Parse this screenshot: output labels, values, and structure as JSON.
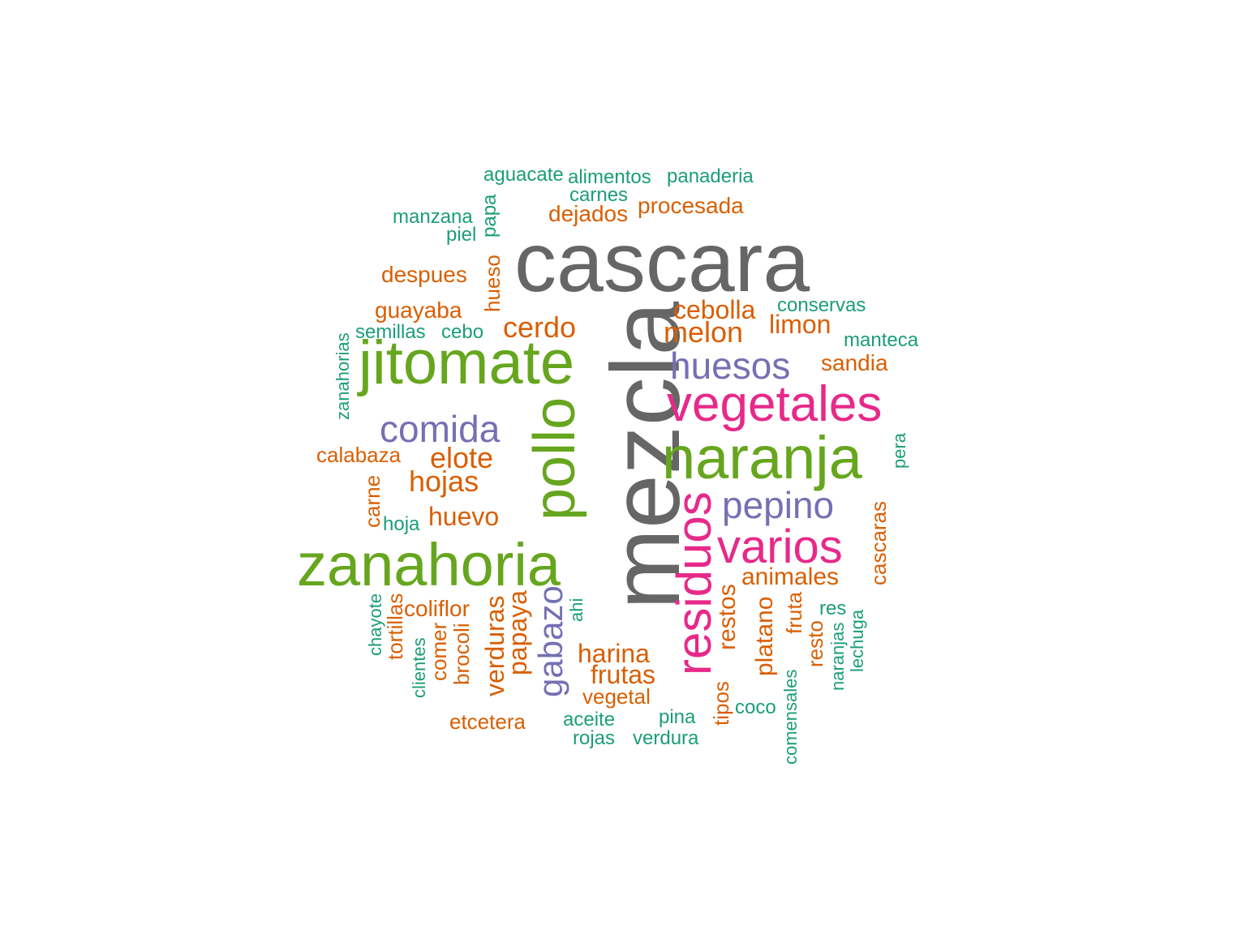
{
  "colors": {
    "gray": "#666666",
    "green": "#66a61e",
    "magenta": "#e7298a",
    "purple": "#7570b3",
    "orange": "#d95f02",
    "teal": "#1b9e77"
  },
  "words": [
    {
      "text": "cascara",
      "color": "gray"
    },
    {
      "text": "mezcla",
      "color": "gray"
    },
    {
      "text": "jitomate",
      "color": "green"
    },
    {
      "text": "zanahoria",
      "color": "green"
    },
    {
      "text": "naranja",
      "color": "green"
    },
    {
      "text": "pollo",
      "color": "green"
    },
    {
      "text": "vegetales",
      "color": "magenta"
    },
    {
      "text": "residuos",
      "color": "magenta"
    },
    {
      "text": "varios",
      "color": "magenta"
    },
    {
      "text": "comida",
      "color": "purple"
    },
    {
      "text": "huesos",
      "color": "purple"
    },
    {
      "text": "pepino",
      "color": "purple"
    },
    {
      "text": "gabazo",
      "color": "purple"
    },
    {
      "text": "cerdo",
      "color": "orange"
    },
    {
      "text": "melon",
      "color": "orange"
    },
    {
      "text": "cebolla",
      "color": "orange"
    },
    {
      "text": "elote",
      "color": "orange"
    },
    {
      "text": "hojas",
      "color": "orange"
    },
    {
      "text": "limon",
      "color": "orange"
    },
    {
      "text": "huevo",
      "color": "orange"
    },
    {
      "text": "harina",
      "color": "orange"
    },
    {
      "text": "frutas",
      "color": "orange"
    },
    {
      "text": "animales",
      "color": "orange"
    },
    {
      "text": "coliflor",
      "color": "orange"
    },
    {
      "text": "verduras",
      "color": "orange"
    },
    {
      "text": "papaya",
      "color": "orange"
    },
    {
      "text": "platano",
      "color": "orange"
    },
    {
      "text": "restos",
      "color": "orange"
    },
    {
      "text": "cascaras",
      "color": "orange"
    },
    {
      "text": "despues",
      "color": "orange"
    },
    {
      "text": "guayaba",
      "color": "orange"
    },
    {
      "text": "dejados",
      "color": "orange"
    },
    {
      "text": "procesada",
      "color": "orange"
    },
    {
      "text": "sandia",
      "color": "orange"
    },
    {
      "text": "calabaza",
      "color": "orange"
    },
    {
      "text": "vegetal",
      "color": "orange"
    },
    {
      "text": "etcetera",
      "color": "orange"
    },
    {
      "text": "hueso",
      "color": "orange"
    },
    {
      "text": "carne",
      "color": "orange"
    },
    {
      "text": "tortillas",
      "color": "orange"
    },
    {
      "text": "comer",
      "color": "orange"
    },
    {
      "text": "brocoli",
      "color": "orange"
    },
    {
      "text": "tipos",
      "color": "orange"
    },
    {
      "text": "fruta",
      "color": "orange"
    },
    {
      "text": "resto",
      "color": "orange"
    },
    {
      "text": "aguacate",
      "color": "teal"
    },
    {
      "text": "alimentos",
      "color": "teal"
    },
    {
      "text": "panaderia",
      "color": "teal"
    },
    {
      "text": "carnes",
      "color": "teal"
    },
    {
      "text": "manzana",
      "color": "teal"
    },
    {
      "text": "piel",
      "color": "teal"
    },
    {
      "text": "papa",
      "color": "teal"
    },
    {
      "text": "conservas",
      "color": "teal"
    },
    {
      "text": "semillas",
      "color": "teal"
    },
    {
      "text": "cebo",
      "color": "teal"
    },
    {
      "text": "manteca",
      "color": "teal"
    },
    {
      "text": "zanahorias",
      "color": "teal"
    },
    {
      "text": "pera",
      "color": "teal"
    },
    {
      "text": "hoja",
      "color": "teal"
    },
    {
      "text": "chayote",
      "color": "teal"
    },
    {
      "text": "clientes",
      "color": "teal"
    },
    {
      "text": "ahi",
      "color": "teal"
    },
    {
      "text": "res",
      "color": "teal"
    },
    {
      "text": "naranjas",
      "color": "teal"
    },
    {
      "text": "lechuga",
      "color": "teal"
    },
    {
      "text": "coco",
      "color": "teal"
    },
    {
      "text": "comensales",
      "color": "teal"
    },
    {
      "text": "aceite",
      "color": "teal"
    },
    {
      "text": "pina",
      "color": "teal"
    },
    {
      "text": "rojas",
      "color": "teal"
    },
    {
      "text": "verdura",
      "color": "teal"
    }
  ]
}
